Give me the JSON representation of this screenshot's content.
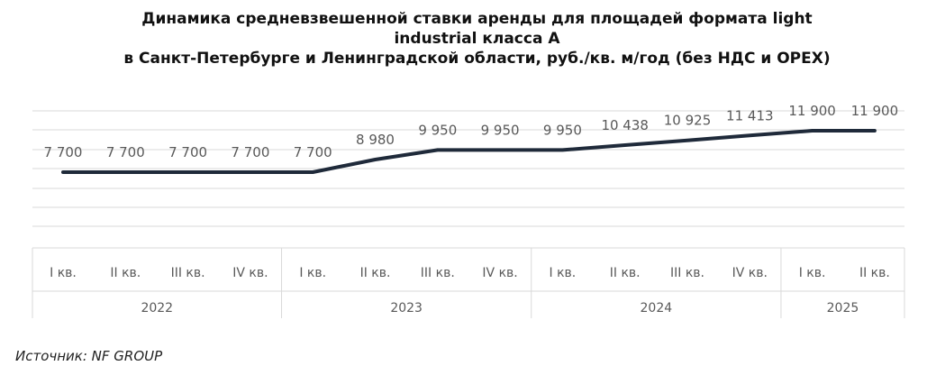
{
  "chart_data": {
    "type": "line",
    "title_lines": [
      "Динамика средневзвешенной ставки аренды для площадей формата light",
      "industrial класса А",
      "в Санкт-Петербурге и Ленинградской области, руб./кв. м/год (без НДС и OPEX)"
    ],
    "categories": [
      "I кв.",
      "II кв.",
      "III кв.",
      "IV кв.",
      "I кв.",
      "II кв.",
      "III кв.",
      "IV кв.",
      "I кв.",
      "II кв.",
      "III кв.",
      "IV кв.",
      "I кв.",
      "II кв."
    ],
    "groups": [
      {
        "label": "2022",
        "count": 4
      },
      {
        "label": "2023",
        "count": 4
      },
      {
        "label": "2024",
        "count": 4
      },
      {
        "label": "2025",
        "count": 2
      }
    ],
    "series": [
      {
        "values": [
          7700,
          7700,
          7700,
          7700,
          7700,
          8980,
          9950,
          9950,
          9950,
          10438,
          10925,
          11413,
          11900,
          11900
        ],
        "data_labels": [
          "7 700",
          "7 700",
          "7 700",
          "7 700",
          "7 700",
          "8 980",
          "9 950",
          "9 950",
          "9 950",
          "10 438",
          "10 925",
          "11 413",
          "11 900",
          "11 900"
        ],
        "color": "#1f2a3a"
      }
    ],
    "grid": true,
    "legend": "none",
    "colors": {
      "line": "#1f2a3a",
      "grid": "#d9d9d9",
      "label": "#595959",
      "axis_border": "#d9d9d9"
    }
  },
  "source": "Источник: NF GROUP"
}
